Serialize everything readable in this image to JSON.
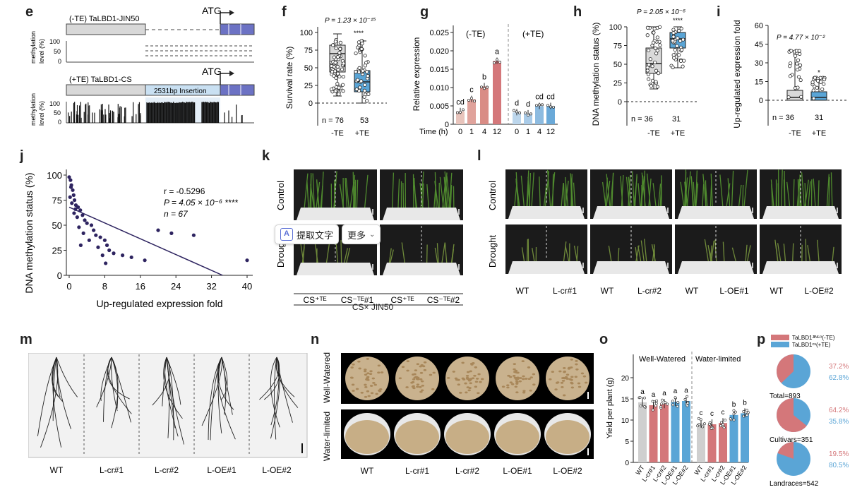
{
  "panels": {
    "e": "e",
    "f": "f",
    "g": "g",
    "h": "h",
    "i": "i",
    "j": "j",
    "k": "k",
    "l": "l",
    "m": "m",
    "n": "n",
    "o": "o",
    "p": "p"
  },
  "e": {
    "top_label": "(-TE) TaLBD1-JIN50",
    "bottom_label": "(+TE) TaLBD1-CS",
    "atg": "ATG",
    "insertion": "2531bp Insertion",
    "ylab": "methylation level (%)",
    "ticks": [
      "100",
      "50",
      "0"
    ]
  },
  "f": {
    "pval": "P = 1.23 × 10⁻¹⁵",
    "ylabel": "Survival rate (%)",
    "ticks": [
      "100",
      "75",
      "50",
      "25",
      "0"
    ],
    "n_left": "n = 76",
    "n_right": "53",
    "xlabels": [
      "-TE",
      "+TE"
    ],
    "sig": "****"
  },
  "g": {
    "ylabel": "Relative expression",
    "ticks": [
      "0.025",
      "0.020",
      "0.015",
      "0.010",
      "0.005",
      "0"
    ],
    "group_left": "(-TE)",
    "group_right": "(+TE)",
    "xlabel": "Time (h)",
    "time_ticks": [
      "0",
      "1",
      "4",
      "12",
      "0",
      "1",
      "4",
      "12"
    ],
    "letters": [
      "cd",
      "c",
      "b",
      "a",
      "d",
      "d",
      "cd",
      "cd"
    ]
  },
  "h": {
    "pval": "P = 2.05 × 10⁻⁶",
    "ylabel": "DNA methylation status (%)",
    "ticks": [
      "100",
      "75",
      "50",
      "25",
      "0"
    ],
    "n_left": "n = 36",
    "n_right": "31",
    "xlabels": [
      "-TE",
      "+TE"
    ],
    "sig": "****"
  },
  "i": {
    "pval": "P = 4.77 × 10⁻²",
    "ylabel": "Up-regulated expression fold",
    "ticks": [
      "60",
      "45",
      "30",
      "15",
      "0"
    ],
    "n_left": "n = 36",
    "n_right": "31",
    "xlabels": [
      "-TE",
      "+TE"
    ],
    "sig": "*"
  },
  "j": {
    "ylabel": "DNA methylation status (%)",
    "xlabel": "Up-regulated expression fold",
    "r": "r = -0.5296",
    "p": "P = 4.05 × 10⁻⁶ ****",
    "n": "n = 67"
  },
  "k": {
    "row_labels": [
      "Control",
      "Drought"
    ],
    "col_labels": [
      "CS⁺ᵀᴱ",
      "CS⁻ᵀᴱ#1",
      "CS⁺ᵀᴱ",
      "CS⁻ᵀᴱ#2"
    ],
    "cross": "CS× JIN50"
  },
  "l": {
    "row_labels": [
      "Control",
      "Drought"
    ],
    "col_labels": [
      "WT",
      "L-cr#1",
      "WT",
      "L-cr#2",
      "WT",
      "L-OE#1",
      "WT",
      "L-OE#2"
    ]
  },
  "m": {
    "labels": [
      "WT",
      "L-cr#1",
      "L-cr#2",
      "L-OE#1",
      "L-OE#2"
    ]
  },
  "n": {
    "row_labels": [
      "Well-Watered",
      "Water-limited"
    ],
    "labels": [
      "WT",
      "L-cr#1",
      "L-cr#2",
      "L-OE#1",
      "L-OE#2"
    ]
  },
  "o": {
    "ylabel": "Yield per plant (g)",
    "ticks": [
      "20",
      "15",
      "10",
      "5",
      "0"
    ],
    "group_left": "Well-Watered",
    "group_right": "Water-limited",
    "xlabels": [
      "WT",
      "L-cr#1",
      "L-cr#2",
      "L-OE#1",
      "L-OE#2",
      "WT",
      "L-cr#1",
      "L-cr#2",
      "L-OE#1",
      "L-OE#2"
    ],
    "letters": [
      "a",
      "a",
      "a",
      "a",
      "a",
      "c",
      "c",
      "c",
      "b",
      "b"
    ]
  },
  "p": {
    "legend": [
      "TaLBD1ᴶᴵᴺ⁵⁰(-TE)",
      "TaLBD1ᶜˢ(+TE)"
    ],
    "pies": [
      {
        "label": "Total=893",
        "a": "37.2%",
        "b": "62.8%"
      },
      {
        "label": "Cultivars=351",
        "a": "64.2%",
        "b": "35.8%"
      },
      {
        "label": "Landraces=542",
        "a": "19.5%",
        "b": "80.5%"
      }
    ]
  },
  "toolbar": {
    "extract": "提取文字",
    "more": "更多"
  },
  "colors": {
    "red": "#d4777a",
    "blue": "#5aa5d6",
    "pink": "#e9b4b0",
    "lightblue": "#a9cbe8",
    "dark": "#2e2460"
  },
  "chart_data": [
    {
      "type": "bar",
      "title": "",
      "ylabel": "Relative expression",
      "xlabel": "Time (h)",
      "categories": [
        "-TE 0",
        "-TE 1",
        "-TE 4",
        "-TE 12",
        "+TE 0",
        "+TE 1",
        "+TE 4",
        "+TE 12"
      ],
      "values": [
        0.0035,
        0.0068,
        0.0103,
        0.0172,
        0.0032,
        0.0029,
        0.0049,
        0.0049
      ],
      "ylim": [
        0,
        0.025
      ]
    },
    {
      "type": "scatter",
      "ylabel": "DNA methylation status (%)",
      "xlabel": "Up-regulated expression fold",
      "x": [
        0,
        0.3,
        0.5,
        0.8,
        1,
        1.2,
        1.5,
        2,
        2.5,
        3,
        3.5,
        4,
        5,
        5.5,
        6,
        7,
        8,
        8.5,
        9,
        10,
        12,
        14,
        17,
        20,
        23,
        28,
        40,
        0.2,
        0.6,
        1.1,
        1.8,
        2.2,
        3.2,
        4.5,
        6.5,
        7.5,
        8.2,
        0.4,
        1.4,
        2.6
      ],
      "y": [
        98,
        95,
        90,
        85,
        80,
        75,
        70,
        68,
        65,
        60,
        55,
        52,
        50,
        45,
        40,
        38,
        35,
        30,
        25,
        22,
        20,
        18,
        15,
        45,
        42,
        40,
        15,
        78,
        72,
        62,
        58,
        48,
        42,
        35,
        28,
        20,
        12,
        88,
        66,
        30
      ],
      "xlim": [
        -2,
        41
      ],
      "ylim": [
        0,
        100
      ]
    },
    {
      "type": "bar",
      "ylabel": "Yield per plant (g)",
      "categories": [
        "WT",
        "L-cr#1",
        "L-cr#2",
        "L-OE#1",
        "L-OE#2",
        "WT",
        "L-cr#1",
        "L-cr#2",
        "L-OE#1",
        "L-OE#2"
      ],
      "values": [
        14.2,
        13.5,
        13.8,
        14.3,
        14.5,
        9.2,
        9.0,
        9.3,
        11.2,
        11.6
      ],
      "ylim": [
        0,
        20
      ]
    },
    {
      "type": "pie",
      "series": [
        {
          "name": "Total=893",
          "values": [
            37.2,
            62.8
          ]
        },
        {
          "name": "Cultivars=351",
          "values": [
            64.2,
            35.8
          ]
        },
        {
          "name": "Landraces=542",
          "values": [
            19.5,
            80.5
          ]
        }
      ]
    }
  ]
}
